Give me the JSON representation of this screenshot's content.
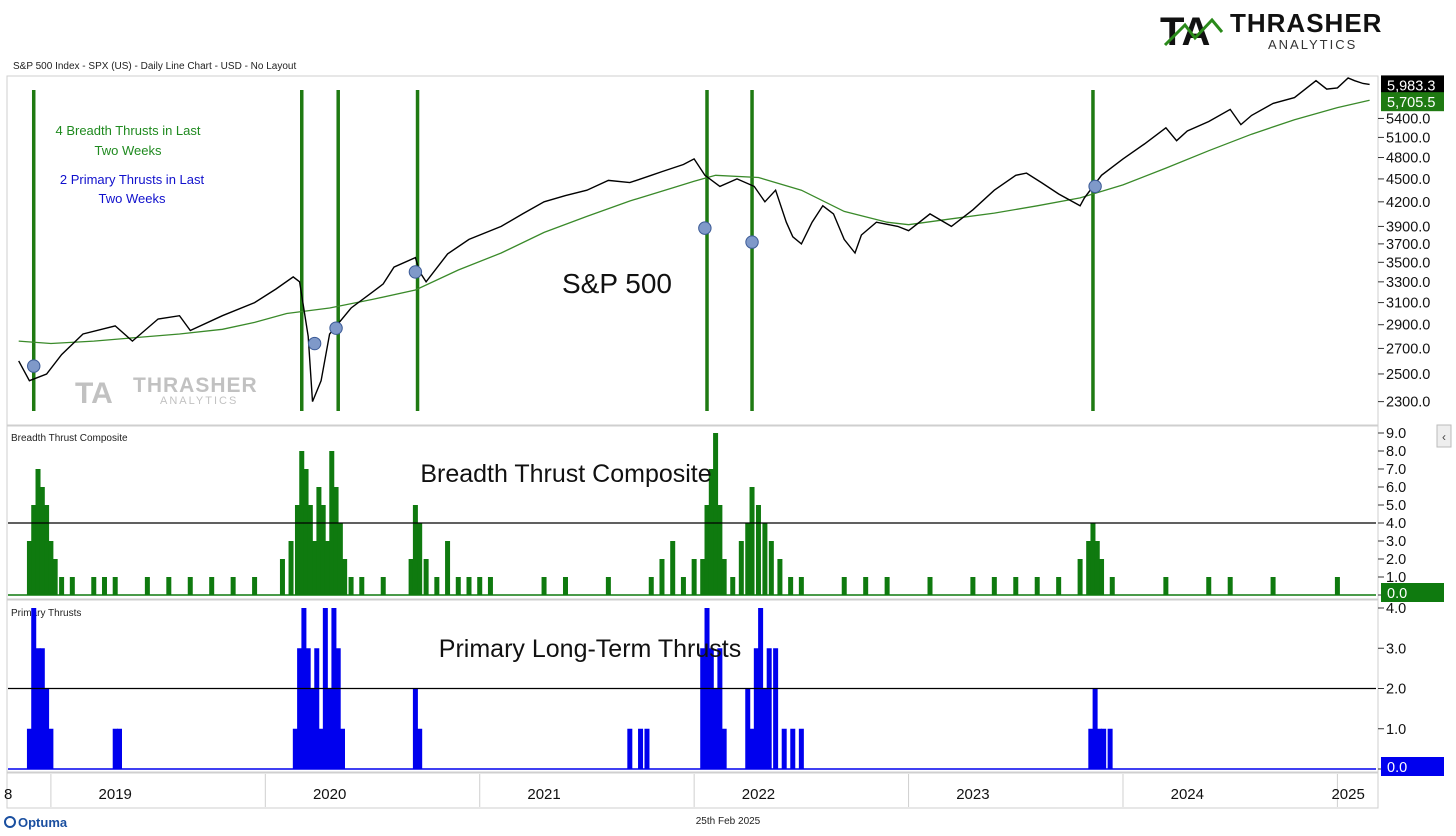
{
  "header": {
    "chart_info": "S&P 500 Index - SPX (US) - Daily Line Chart - USD - No Layout",
    "logo_brand": "THRASHER",
    "logo_sub": "ANALYTICS",
    "logo_mark": "TA"
  },
  "footer": {
    "vendor": "Optuma",
    "date": "25th Feb 2025"
  },
  "colors": {
    "price": "#000000",
    "ma": "#3a8a2a",
    "thrust_line": "#1f7a12",
    "breadth_fill": "#0f7a0f",
    "primary_fill": "#0000ee",
    "marker": "#7f99c9"
  },
  "chart_data": [
    {
      "type": "line",
      "title": "S&P 500",
      "panel_label": "",
      "annotation_green": [
        "4 Breadth Thrusts in Last",
        "Two Weeks"
      ],
      "annotation_blue": [
        "2 Primary Thrusts in Last",
        "Two Weeks"
      ],
      "x_ticks": [
        "8",
        "2019",
        "2020",
        "2021",
        "2022",
        "2023",
        "2024",
        "2025"
      ],
      "ylim": [
        2150,
        6100
      ],
      "y_ticks": [
        2300,
        2500,
        2700,
        2900,
        3100,
        3300,
        3500,
        3700,
        3900,
        4200,
        4500,
        4800,
        5100,
        5400
      ],
      "y_tick_labels": [
        "2300.0",
        "2500.0",
        "2700.0",
        "2900.0",
        "3100.0",
        "3300.0",
        "3500.0",
        "3700.0",
        "3900.0",
        "4200.0",
        "4500.0",
        "4800.0",
        "5100.0",
        "5400.0"
      ],
      "last_price": {
        "value": 5983.3,
        "label": "5,983.3"
      },
      "last_ma": {
        "value": 5705.5,
        "label": "5,705.5"
      },
      "series": [
        {
          "role": "price",
          "x": [
            2018.85,
            2018.9,
            2018.98,
            2019.05,
            2019.15,
            2019.3,
            2019.38,
            2019.5,
            2019.6,
            2019.65,
            2019.8,
            2019.95,
            2020.05,
            2020.13,
            2020.16,
            2020.2,
            2020.22,
            2020.26,
            2020.3,
            2020.4,
            2020.5,
            2020.55,
            2020.6,
            2020.7,
            2020.72,
            2020.75,
            2020.85,
            2020.95,
            2021.1,
            2021.2,
            2021.3,
            2021.4,
            2021.5,
            2021.6,
            2021.7,
            2021.8,
            2021.85,
            2021.95,
            2022.0,
            2022.05,
            2022.12,
            2022.2,
            2022.28,
            2022.33,
            2022.38,
            2022.43,
            2022.46,
            2022.5,
            2022.55,
            2022.6,
            2022.65,
            2022.7,
            2022.75,
            2022.78,
            2022.85,
            2022.95,
            2023.0,
            2023.1,
            2023.2,
            2023.3,
            2023.4,
            2023.5,
            2023.55,
            2023.62,
            2023.7,
            2023.8,
            2023.82,
            2023.9,
            2024.0,
            2024.1,
            2024.2,
            2024.25,
            2024.3,
            2024.4,
            2024.5,
            2024.55,
            2024.6,
            2024.7,
            2024.8,
            2024.9,
            2024.95,
            2025.0,
            2025.05,
            2025.08,
            2025.12,
            2025.15
          ],
          "values": [
            2600,
            2450,
            2500,
            2650,
            2820,
            2890,
            2760,
            2950,
            2980,
            2850,
            2980,
            3100,
            3230,
            3350,
            3300,
            2800,
            2300,
            2450,
            2820,
            3050,
            3200,
            3280,
            3450,
            3550,
            3400,
            3300,
            3590,
            3750,
            3900,
            4050,
            4200,
            4280,
            4350,
            4480,
            4450,
            4550,
            4600,
            4700,
            4780,
            4550,
            4400,
            4500,
            4400,
            4200,
            4350,
            3950,
            3780,
            3700,
            3950,
            4150,
            4050,
            3750,
            3600,
            3800,
            3950,
            3900,
            3850,
            4050,
            3900,
            4100,
            4350,
            4550,
            4580,
            4450,
            4300,
            4150,
            4250,
            4550,
            4780,
            5000,
            5250,
            5050,
            5200,
            5350,
            5550,
            5300,
            5450,
            5650,
            5750,
            6050,
            5900,
            5920,
            6100,
            6050,
            6000,
            5983
          ]
        },
        {
          "role": "ma200",
          "x": [
            2018.85,
            2019.0,
            2019.2,
            2019.4,
            2019.6,
            2019.8,
            2019.95,
            2020.1,
            2020.3,
            2020.5,
            2020.7,
            2020.9,
            2021.1,
            2021.3,
            2021.5,
            2021.7,
            2021.9,
            2022.0,
            2022.1,
            2022.3,
            2022.5,
            2022.7,
            2022.9,
            2023.0,
            2023.2,
            2023.4,
            2023.6,
            2023.8,
            2024.0,
            2024.2,
            2024.4,
            2024.6,
            2024.8,
            2025.0,
            2025.15
          ],
          "values": [
            2760,
            2740,
            2760,
            2790,
            2820,
            2860,
            2920,
            3000,
            3050,
            3130,
            3220,
            3420,
            3600,
            3830,
            4020,
            4210,
            4380,
            4470,
            4550,
            4520,
            4350,
            4080,
            3950,
            3920,
            3990,
            4060,
            4150,
            4250,
            4420,
            4650,
            4900,
            5150,
            5380,
            5580,
            5705
          ]
        }
      ],
      "markers": [
        {
          "x": 2018.92,
          "y": 2560
        },
        {
          "x": 2020.23,
          "y": 2740
        },
        {
          "x": 2020.33,
          "y": 2870
        },
        {
          "x": 2020.7,
          "y": 3400
        },
        {
          "x": 2022.05,
          "y": 3880
        },
        {
          "x": 2022.27,
          "y": 3720
        },
        {
          "x": 2023.87,
          "y": 4400
        }
      ],
      "thrust_lines_x": [
        2018.92,
        2020.17,
        2020.34,
        2020.71,
        2022.06,
        2022.27,
        2023.86
      ]
    },
    {
      "type": "bar",
      "title": "Breadth Thrust Composite",
      "panel_label": "Breadth Thrust Composite",
      "ylim": [
        0,
        9
      ],
      "y_ticks": [
        0,
        1,
        2,
        3,
        4,
        5,
        6,
        7,
        8,
        9
      ],
      "y_tick_labels": [
        "0.0",
        "1.0",
        "2.0",
        "3.0",
        "4.0",
        "5.0",
        "6.0",
        "7.0",
        "8.0",
        "9.0"
      ],
      "threshold": 4.0,
      "last_value": {
        "value": 0.0,
        "label": "0.0"
      },
      "x": [
        2018.9,
        2018.92,
        2018.94,
        2018.96,
        2018.98,
        2019.0,
        2019.02,
        2019.05,
        2019.1,
        2019.15,
        2019.2,
        2019.25,
        2019.3,
        2019.35,
        2019.45,
        2019.55,
        2019.65,
        2019.75,
        2019.85,
        2019.95,
        2020.02,
        2020.08,
        2020.12,
        2020.15,
        2020.17,
        2020.19,
        2020.21,
        2020.23,
        2020.25,
        2020.27,
        2020.29,
        2020.31,
        2020.33,
        2020.35,
        2020.37,
        2020.4,
        2020.45,
        2020.5,
        2020.55,
        2020.6,
        2020.68,
        2020.7,
        2020.72,
        2020.75,
        2020.8,
        2020.85,
        2020.9,
        2020.95,
        2021.0,
        2021.05,
        2021.15,
        2021.3,
        2021.4,
        2021.6,
        2021.7,
        2021.8,
        2021.85,
        2021.9,
        2021.95,
        2022.0,
        2022.04,
        2022.06,
        2022.08,
        2022.1,
        2022.12,
        2022.14,
        2022.18,
        2022.22,
        2022.25,
        2022.27,
        2022.3,
        2022.33,
        2022.36,
        2022.4,
        2022.45,
        2022.5,
        2022.6,
        2022.7,
        2022.8,
        2022.9,
        2023.0,
        2023.1,
        2023.2,
        2023.3,
        2023.4,
        2023.5,
        2023.6,
        2023.7,
        2023.8,
        2023.84,
        2023.86,
        2023.88,
        2023.9,
        2023.95,
        2024.0,
        2024.2,
        2024.3,
        2024.4,
        2024.5,
        2024.6,
        2024.7,
        2024.8,
        2024.9,
        2025.0,
        2025.1,
        2025.15
      ],
      "values": [
        3,
        5,
        7,
        6,
        5,
        3,
        2,
        1,
        1,
        0,
        1,
        1,
        1,
        0,
        1,
        1,
        1,
        1,
        1,
        1,
        0,
        2,
        3,
        5,
        8,
        7,
        5,
        3,
        6,
        5,
        3,
        8,
        6,
        4,
        2,
        1,
        1,
        0,
        1,
        0,
        2,
        5,
        4,
        2,
        1,
        3,
        1,
        1,
        1,
        1,
        0,
        1,
        1,
        1,
        0,
        1,
        2,
        3,
        1,
        2,
        2,
        5,
        7,
        9,
        5,
        2,
        1,
        3,
        4,
        6,
        5,
        4,
        3,
        2,
        1,
        1,
        0,
        1,
        1,
        1,
        0,
        1,
        0,
        1,
        1,
        1,
        1,
        1,
        2,
        3,
        4,
        3,
        2,
        1,
        0,
        1,
        0,
        1,
        1,
        0,
        1,
        0,
        0,
        1,
        0,
        0
      ]
    },
    {
      "type": "bar",
      "title": "Primary Long-Term Thrusts",
      "panel_label": "Primary Thrusts",
      "ylim": [
        0,
        4
      ],
      "y_ticks": [
        0,
        1,
        2,
        3,
        4
      ],
      "y_tick_labels": [
        "0.0",
        "1.0",
        "2.0",
        "3.0",
        "4.0"
      ],
      "threshold": 2.0,
      "last_value": {
        "value": 0.0,
        "label": "0.0"
      },
      "x": [
        2018.9,
        2018.92,
        2018.94,
        2018.96,
        2018.98,
        2019.0,
        2019.3,
        2019.32,
        2020.14,
        2020.16,
        2020.18,
        2020.2,
        2020.22,
        2020.24,
        2020.26,
        2020.28,
        2020.3,
        2020.32,
        2020.34,
        2020.36,
        2020.7,
        2020.72,
        2021.7,
        2021.75,
        2021.78,
        2022.04,
        2022.06,
        2022.08,
        2022.1,
        2022.12,
        2022.14,
        2022.25,
        2022.27,
        2022.29,
        2022.31,
        2022.33,
        2022.35,
        2022.38,
        2022.42,
        2022.46,
        2022.5,
        2023.85,
        2023.87,
        2023.89,
        2023.91,
        2023.94
      ],
      "values": [
        1,
        4,
        3,
        3,
        2,
        1,
        1,
        1,
        1,
        3,
        4,
        3,
        2,
        3,
        1,
        4,
        2,
        4,
        3,
        1,
        2,
        1,
        1,
        1,
        1,
        3,
        4,
        3,
        2,
        3,
        1,
        2,
        1,
        3,
        4,
        2,
        3,
        3,
        1,
        1,
        1,
        1,
        2,
        1,
        1,
        1
      ]
    }
  ]
}
